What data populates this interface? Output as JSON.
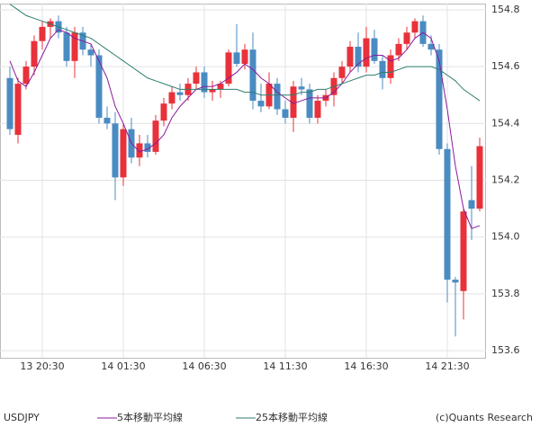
{
  "chart_data": {
    "type": "candlestick",
    "title": "USDJPY",
    "source": "(c)Quants Research",
    "up_color": "#e8313a",
    "down_color": "#4a8bc2",
    "categories": [
      null,
      null,
      null,
      null,
      "13 20:30",
      null,
      null,
      null,
      null,
      null,
      null,
      null,
      null,
      null,
      "14 01:30",
      null,
      null,
      null,
      null,
      null,
      null,
      null,
      null,
      null,
      "14 06:30",
      null,
      null,
      null,
      null,
      null,
      null,
      null,
      null,
      null,
      "14 11:30",
      null,
      null,
      null,
      null,
      null,
      null,
      null,
      null,
      null,
      "14 16:30",
      null,
      null,
      null,
      null,
      null,
      null,
      null,
      null,
      null,
      "14 21:30",
      null,
      null,
      null,
      null
    ],
    "open": [
      154.56,
      154.36,
      154.54,
      154.6,
      154.69,
      154.74,
      154.76,
      154.72,
      154.62,
      154.72,
      154.66,
      154.64,
      154.42,
      154.4,
      154.21,
      154.38,
      154.28,
      154.33,
      154.3,
      154.41,
      154.47,
      154.51,
      154.5,
      154.54,
      154.58,
      154.51,
      154.52,
      154.54,
      154.65,
      154.61,
      154.66,
      154.48,
      154.46,
      154.54,
      154.45,
      154.42,
      154.53,
      154.52,
      154.42,
      154.48,
      154.5,
      154.56,
      154.6,
      154.67,
      154.6,
      154.7,
      154.62,
      154.56,
      154.64,
      154.68,
      154.72,
      154.76,
      154.68,
      154.66,
      154.31,
      153.85,
      153.81,
      154.13,
      154.1
    ],
    "high": [
      154.6,
      154.56,
      154.62,
      154.71,
      154.76,
      154.77,
      154.78,
      154.74,
      154.74,
      154.74,
      154.68,
      154.66,
      154.46,
      154.44,
      154.4,
      154.42,
      154.36,
      154.36,
      154.43,
      154.49,
      154.53,
      154.54,
      154.56,
      154.6,
      154.6,
      154.55,
      154.55,
      154.66,
      154.75,
      154.68,
      154.72,
      154.54,
      154.58,
      154.56,
      154.48,
      154.55,
      154.56,
      154.54,
      154.5,
      154.52,
      154.58,
      154.62,
      154.69,
      154.72,
      154.74,
      154.73,
      154.64,
      154.66,
      154.7,
      154.74,
      154.77,
      154.78,
      154.71,
      154.68,
      154.33,
      153.86,
      154.1,
      154.25,
      154.35
    ],
    "low": [
      154.36,
      154.33,
      154.52,
      154.57,
      154.66,
      154.7,
      154.7,
      154.6,
      154.56,
      154.64,
      154.6,
      154.4,
      154.38,
      154.13,
      154.18,
      154.26,
      154.25,
      154.28,
      154.29,
      154.39,
      154.45,
      154.48,
      154.48,
      154.52,
      154.49,
      154.48,
      154.49,
      154.53,
      154.6,
      154.59,
      154.45,
      154.44,
      154.45,
      154.43,
      154.4,
      154.37,
      154.5,
      154.4,
      154.4,
      154.46,
      154.46,
      154.54,
      154.58,
      154.58,
      154.58,
      154.61,
      154.52,
      154.54,
      154.62,
      154.66,
      154.7,
      154.67,
      154.64,
      154.29,
      153.77,
      153.65,
      153.71,
      153.99,
      154.09
    ],
    "close": [
      154.38,
      154.54,
      154.6,
      154.69,
      154.74,
      154.76,
      154.72,
      154.62,
      154.72,
      154.66,
      154.64,
      154.42,
      154.4,
      154.21,
      154.38,
      154.28,
      154.33,
      154.3,
      154.41,
      154.47,
      154.51,
      154.5,
      154.54,
      154.58,
      154.51,
      154.52,
      154.54,
      154.65,
      154.61,
      154.66,
      154.48,
      154.46,
      154.54,
      154.45,
      154.42,
      154.53,
      154.52,
      154.42,
      154.48,
      154.5,
      154.56,
      154.6,
      154.67,
      154.6,
      154.7,
      154.62,
      154.56,
      154.64,
      154.68,
      154.72,
      154.76,
      154.68,
      154.66,
      154.31,
      153.85,
      153.84,
      154.09,
      154.1,
      154.32
    ],
    "series": [
      {
        "name": "5本移動平均線",
        "color": "#8b1a9b",
        "values": [
          154.62,
          154.55,
          154.53,
          154.58,
          154.64,
          154.7,
          154.73,
          154.72,
          154.7,
          154.69,
          154.68,
          154.62,
          154.56,
          154.46,
          154.4,
          154.33,
          154.3,
          154.31,
          154.33,
          154.36,
          154.42,
          154.46,
          154.49,
          154.52,
          154.53,
          154.53,
          154.54,
          154.56,
          154.58,
          154.61,
          154.59,
          154.56,
          154.54,
          154.51,
          154.49,
          154.47,
          154.48,
          154.49,
          154.49,
          154.49,
          154.51,
          154.54,
          154.58,
          154.61,
          154.63,
          154.64,
          154.64,
          154.62,
          154.63,
          154.66,
          154.7,
          154.72,
          154.7,
          154.62,
          154.45,
          154.25,
          154.1,
          154.03,
          154.04
        ]
      },
      {
        "name": "25本移動平均線",
        "color": "#2e7d6e",
        "values": [
          154.82,
          154.8,
          154.78,
          154.77,
          154.76,
          154.75,
          154.74,
          154.73,
          154.72,
          154.71,
          154.7,
          154.68,
          154.66,
          154.64,
          154.62,
          154.6,
          154.58,
          154.56,
          154.55,
          154.54,
          154.53,
          154.52,
          154.52,
          154.52,
          154.52,
          154.52,
          154.52,
          154.52,
          154.52,
          154.51,
          154.51,
          154.5,
          154.5,
          154.5,
          154.5,
          154.5,
          154.51,
          154.51,
          154.52,
          154.52,
          154.53,
          154.54,
          154.55,
          154.56,
          154.57,
          154.57,
          154.58,
          154.58,
          154.59,
          154.6,
          154.6,
          154.6,
          154.6,
          154.59,
          154.57,
          154.55,
          154.52,
          154.5,
          154.48
        ]
      }
    ],
    "ylim": [
      153.575,
      154.822
    ],
    "yticks": [
      153.6,
      153.8,
      {
        "value": 154,
        "label": "154.0"
      },
      154.2,
      154.4,
      154.6,
      154.8
    ],
    "grid": true
  }
}
